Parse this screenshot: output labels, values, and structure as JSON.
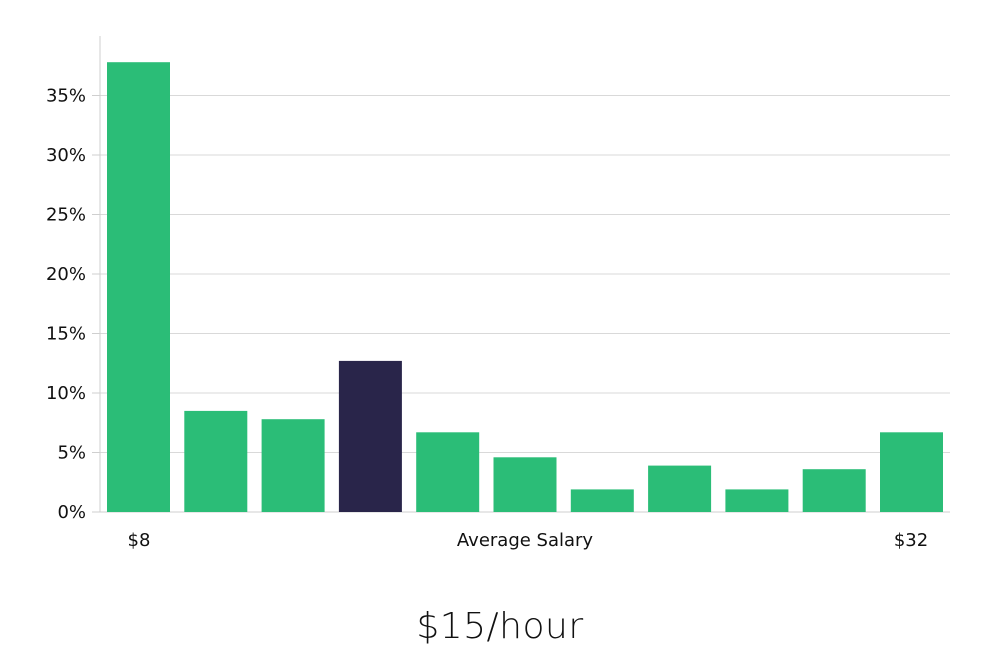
{
  "headline": "$15/hour",
  "colors": {
    "bar": "#2bbd77",
    "bar_highlight": "#29254a",
    "grid": "#d9d9d9",
    "text": "#111111"
  },
  "chart_data": {
    "type": "bar",
    "title": "",
    "xlabel": "Average Salary",
    "ylabel": "",
    "x_start_label": "$8",
    "x_end_label": "$32",
    "ylim": [
      0,
      40
    ],
    "yticks": [
      0,
      5,
      10,
      15,
      20,
      25,
      30,
      35
    ],
    "ytick_labels": [
      "0%",
      "5%",
      "10%",
      "15%",
      "20%",
      "25%",
      "30%",
      "35%"
    ],
    "grid": true,
    "values": [
      37.8,
      8.5,
      7.8,
      12.7,
      6.7,
      4.6,
      1.9,
      3.9,
      1.9,
      3.6,
      6.7
    ],
    "highlight_index": 3
  }
}
